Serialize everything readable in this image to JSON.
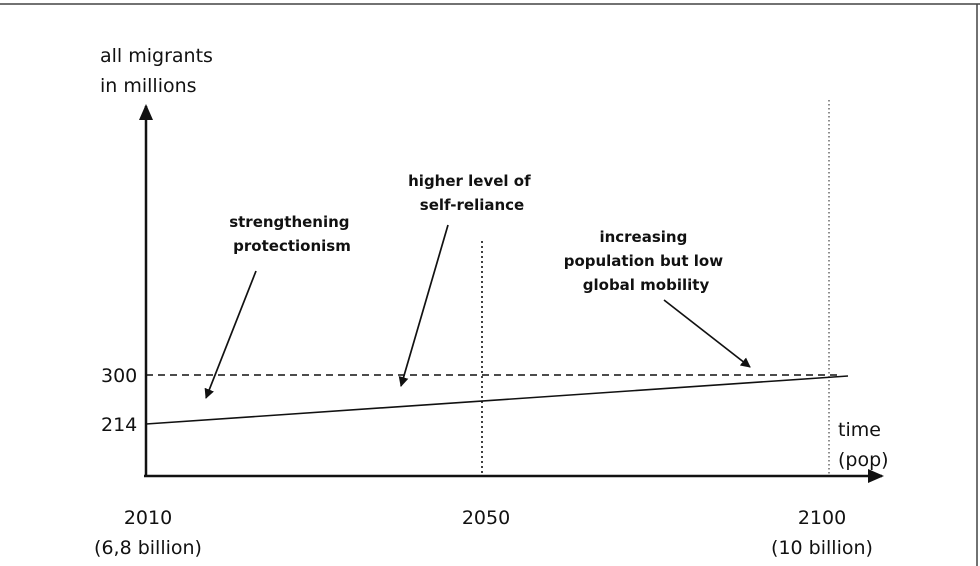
{
  "y_axis_label": [
    "all migrants",
    "in millions"
  ],
  "y_ticks": [
    {
      "label": "300",
      "value": 300
    },
    {
      "label": "214",
      "value": 214
    }
  ],
  "x_axis_label": [
    "time",
    "(pop)"
  ],
  "x_ticks": [
    {
      "year": "2010",
      "sub": "(6,8 billion)"
    },
    {
      "year": "2050",
      "sub": ""
    },
    {
      "year": "2100",
      "sub": "(10 billion)"
    }
  ],
  "annotations": {
    "protectionism": [
      "strengthening",
      "protectionism"
    ],
    "self_reliance": [
      "higher level of",
      "self-reliance"
    ],
    "mobility": [
      "increasing",
      "population but low",
      "global mobility"
    ]
  },
  "trend": {
    "start_year": 2010,
    "start_value": 214,
    "end_year": 2100,
    "end_value": 300
  }
}
